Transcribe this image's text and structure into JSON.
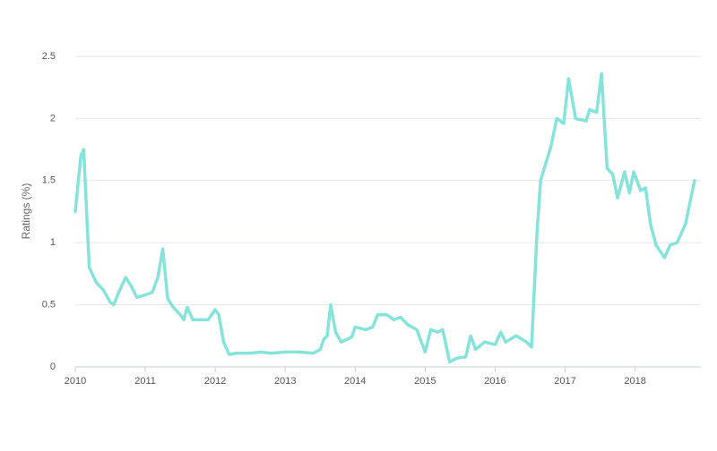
{
  "chart_data": {
    "type": "line",
    "y_label": "Ratings (%)",
    "x": [
      2010.0,
      2010.08,
      2010.12,
      2010.2,
      2010.3,
      2010.4,
      2010.5,
      2010.55,
      2010.62,
      2010.72,
      2010.8,
      2010.88,
      2011.0,
      2011.1,
      2011.18,
      2011.25,
      2011.32,
      2011.4,
      2011.5,
      2011.55,
      2011.6,
      2011.68,
      2011.8,
      2011.9,
      2012.0,
      2012.05,
      2012.12,
      2012.2,
      2012.3,
      2012.5,
      2012.65,
      2012.8,
      2013.0,
      2013.2,
      2013.4,
      2013.5,
      2013.55,
      2013.6,
      2013.65,
      2013.72,
      2013.8,
      2013.95,
      2014.0,
      2014.15,
      2014.25,
      2014.32,
      2014.45,
      2014.55,
      2014.65,
      2014.75,
      2014.88,
      2015.0,
      2015.08,
      2015.18,
      2015.25,
      2015.35,
      2015.45,
      2015.58,
      2015.65,
      2015.72,
      2015.85,
      2016.0,
      2016.08,
      2016.15,
      2016.3,
      2016.45,
      2016.52,
      2016.6,
      2016.65,
      2016.8,
      2016.88,
      2016.98,
      2017.05,
      2017.15,
      2017.3,
      2017.35,
      2017.45,
      2017.52,
      2017.6,
      2017.68,
      2017.75,
      2017.85,
      2017.92,
      2017.98,
      2018.08,
      2018.15,
      2018.22,
      2018.3,
      2018.42,
      2018.5,
      2018.6,
      2018.72,
      2018.85
    ],
    "series": [
      {
        "color": "#86e3da",
        "values": [
          1.25,
          1.7,
          1.75,
          0.8,
          0.68,
          0.62,
          0.52,
          0.5,
          0.6,
          0.72,
          0.65,
          0.56,
          0.58,
          0.6,
          0.72,
          0.95,
          0.55,
          0.48,
          0.42,
          0.38,
          0.48,
          0.38,
          0.38,
          0.38,
          0.46,
          0.42,
          0.2,
          0.1,
          0.11,
          0.11,
          0.12,
          0.11,
          0.12,
          0.12,
          0.11,
          0.14,
          0.22,
          0.25,
          0.5,
          0.28,
          0.2,
          0.24,
          0.32,
          0.3,
          0.32,
          0.42,
          0.42,
          0.38,
          0.4,
          0.34,
          0.3,
          0.12,
          0.3,
          0.28,
          0.3,
          0.04,
          0.07,
          0.08,
          0.25,
          0.14,
          0.2,
          0.18,
          0.28,
          0.2,
          0.25,
          0.2,
          0.16,
          1.1,
          1.5,
          1.78,
          2.0,
          1.96,
          2.32,
          2.0,
          1.98,
          2.07,
          2.05,
          2.36,
          1.6,
          1.55,
          1.36,
          1.57,
          1.4,
          1.57,
          1.42,
          1.44,
          1.15,
          0.98,
          0.88,
          0.98,
          1.0,
          1.15,
          1.5
        ]
      }
    ],
    "xlim": [
      2010,
      2018.94
    ],
    "xticks": [
      2010,
      2011,
      2012,
      2013,
      2014,
      2015,
      2016,
      2017,
      2018
    ],
    "ylim": [
      0,
      2.5
    ],
    "yticks": [
      0,
      0.5,
      1,
      1.5,
      2,
      2.5
    ],
    "grid": true
  }
}
